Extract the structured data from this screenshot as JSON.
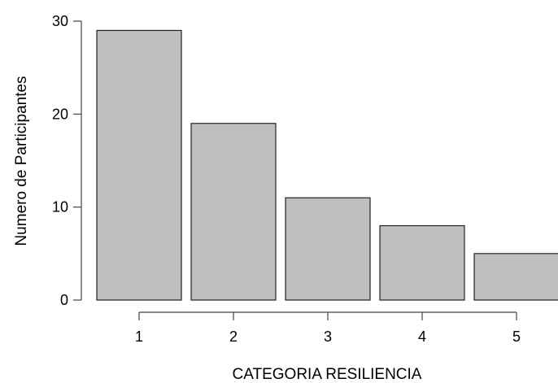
{
  "chart_data": {
    "type": "bar",
    "categories": [
      "1",
      "2",
      "3",
      "4",
      "5"
    ],
    "values": [
      29,
      19,
      11,
      8,
      5
    ],
    "xlabel": "CATEGORIA RESILIENCIA",
    "ylabel": "Numero de Participantes",
    "ylim": [
      0,
      30
    ],
    "yticks": [
      "0",
      "10",
      "20",
      "30"
    ],
    "grid": false,
    "bar_color": "#bfbfbf",
    "bar_edge_color": "#222222"
  }
}
